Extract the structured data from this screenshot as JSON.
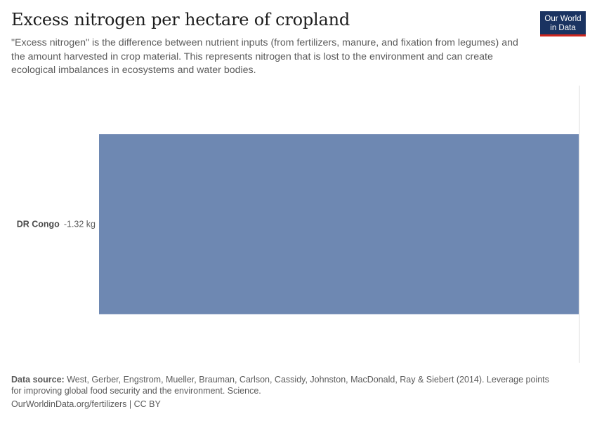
{
  "header": {
    "title": "Excess nitrogen per hectare of cropland",
    "subtitle": "\"Excess nitrogen\" is the difference between nutrient inputs (from fertilizers, manure, and fixation from legumes) and the amount harvested in crop material. This represents nitrogen that is lost to the environment and can create ecological imbalances in ecosystems and water bodies."
  },
  "logo": {
    "line1": "Our World",
    "line2": "in Data"
  },
  "colors": {
    "bar": "#6e88b2",
    "zero_line": "#dddddd",
    "logo_bg": "#1a3361",
    "logo_accent": "#ce261e"
  },
  "chart_data": {
    "type": "bar",
    "orientation": "horizontal",
    "categories": [
      "DR Congo"
    ],
    "values": [
      -1.32
    ],
    "value_labels": [
      "-1.32 kg"
    ],
    "unit": "kg",
    "xlim": [
      -1.32,
      0
    ]
  },
  "footer": {
    "source_label": "Data source:",
    "source_text": "West, Gerber, Engstrom, Mueller, Brauman, Carlson, Cassidy, Johnston, MacDonald, Ray & Siebert (2014). Leverage points for improving global food security and the environment. Science.",
    "url": "OurWorldinData.org/fertilizers",
    "separator": "|",
    "license": "CC BY"
  }
}
